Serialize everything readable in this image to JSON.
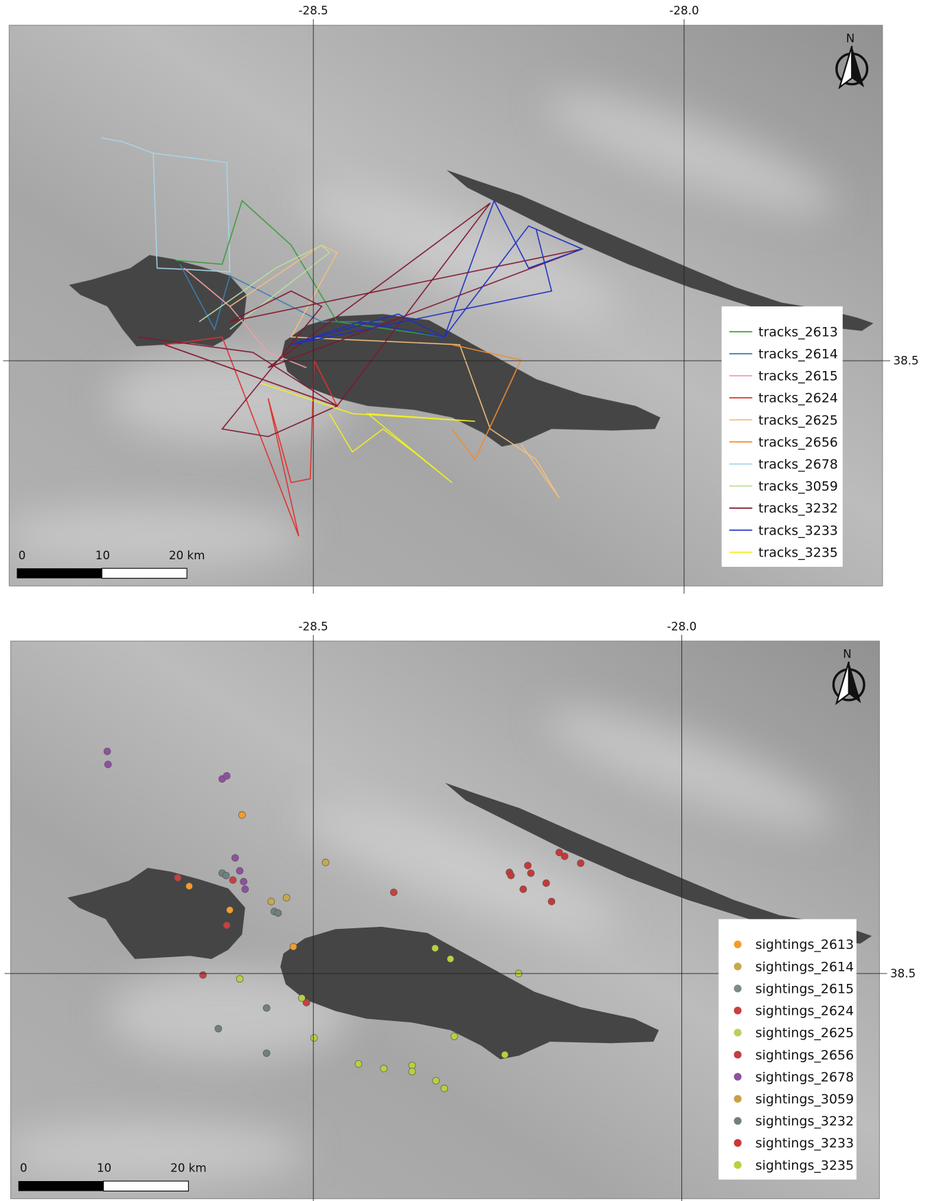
{
  "maps": [
    {
      "lon_labels": [
        "-28.5",
        "-28.0"
      ],
      "lat_label": "38.5",
      "north": "N",
      "scale_labels": [
        "0",
        "10",
        "20 km"
      ],
      "legend": [
        {
          "name": "tracks_2613",
          "color": "#3c9e3c"
        },
        {
          "name": "tracks_2614",
          "color": "#3b7fb0"
        },
        {
          "name": "tracks_2615",
          "color": "#f0a0a8"
        },
        {
          "name": "tracks_2624",
          "color": "#e03030"
        },
        {
          "name": "tracks_2625",
          "color": "#f0c080"
        },
        {
          "name": "tracks_2656",
          "color": "#f08c30"
        },
        {
          "name": "tracks_2678",
          "color": "#a8d4e8"
        },
        {
          "name": "tracks_3059",
          "color": "#b8e0a0"
        },
        {
          "name": "tracks_3232",
          "color": "#801830"
        },
        {
          "name": "tracks_3233",
          "color": "#2030c0"
        },
        {
          "name": "tracks_3235",
          "color": "#f0f020"
        }
      ]
    },
    {
      "lon_labels": [
        "-28.5",
        "-28.0"
      ],
      "lat_label": "38.5",
      "north": "N",
      "scale_labels": [
        "0",
        "10",
        "20 km"
      ],
      "legend": [
        {
          "name": "sightings_2613",
          "color": "#f39c2a"
        },
        {
          "name": "sightings_2614",
          "color": "#c9a84a"
        },
        {
          "name": "sightings_2615",
          "color": "#7d8a8a"
        },
        {
          "name": "sightings_2624",
          "color": "#c84040"
        },
        {
          "name": "sightings_2625",
          "color": "#b8d060"
        },
        {
          "name": "sightings_2656",
          "color": "#c04040"
        },
        {
          "name": "sightings_2678",
          "color": "#9050a0"
        },
        {
          "name": "sightings_3059",
          "color": "#c8a040"
        },
        {
          "name": "sightings_3232",
          "color": "#708080"
        },
        {
          "name": "sightings_3233",
          "color": "#c83838"
        },
        {
          "name": "sightings_3235",
          "color": "#b8d040"
        }
      ]
    }
  ]
}
